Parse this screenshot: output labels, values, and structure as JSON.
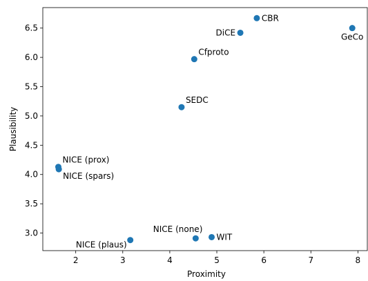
{
  "chart_data": {
    "type": "scatter",
    "title": "",
    "xlabel": "Proximity",
    "ylabel": "Plausibility",
    "xlim": [
      1.3,
      8.2
    ],
    "ylim": [
      2.7,
      6.85
    ],
    "xticks": [
      2,
      3,
      4,
      5,
      6,
      7,
      8
    ],
    "xtick_labels": [
      "2",
      "3",
      "4",
      "5",
      "6",
      "7",
      "8"
    ],
    "yticks": [
      3.0,
      3.5,
      4.0,
      4.5,
      5.0,
      5.5,
      6.0,
      6.5
    ],
    "ytick_labels": [
      "3.0",
      "3.5",
      "4.0",
      "4.5",
      "5.0",
      "5.5",
      "6.0",
      "6.5"
    ],
    "grid": false,
    "marker_color": "#1f77b4",
    "points": [
      {
        "label": "CBR",
        "x": 5.85,
        "y": 6.67,
        "label_pos": "right"
      },
      {
        "label": "DiCE",
        "x": 5.5,
        "y": 6.42,
        "label_pos": "left"
      },
      {
        "label": "GeCo",
        "x": 7.88,
        "y": 6.5,
        "label_pos": "below"
      },
      {
        "label": "Cfproto",
        "x": 4.52,
        "y": 5.97,
        "label_pos": "above-right"
      },
      {
        "label": "SEDC",
        "x": 4.25,
        "y": 5.15,
        "label_pos": "above-right"
      },
      {
        "label": "NICE (prox)",
        "x": 1.63,
        "y": 4.13,
        "label_pos": "above-right"
      },
      {
        "label": "NICE (spars)",
        "x": 1.64,
        "y": 4.09,
        "label_pos": "below-right"
      },
      {
        "label": "NICE (plaus)",
        "x": 3.16,
        "y": 2.88,
        "label_pos": "below-left"
      },
      {
        "label": "NICE (none)",
        "x": 4.55,
        "y": 2.91,
        "label_pos": "above-left"
      },
      {
        "label": "WIT",
        "x": 4.89,
        "y": 2.93,
        "label_pos": "right"
      }
    ]
  }
}
